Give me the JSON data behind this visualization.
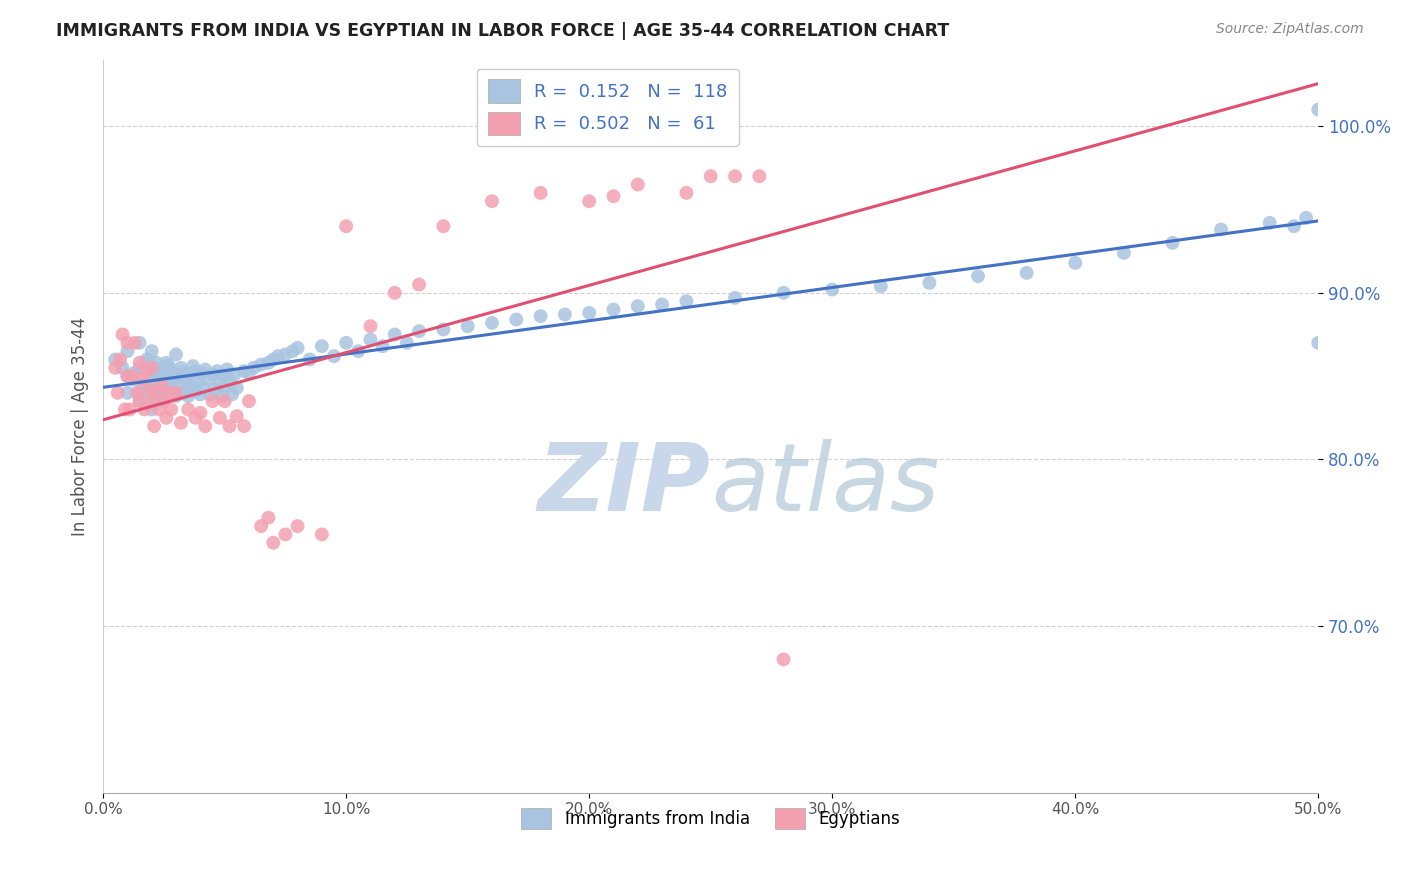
{
  "title": "IMMIGRANTS FROM INDIA VS EGYPTIAN IN LABOR FORCE | AGE 35-44 CORRELATION CHART",
  "source_text": "Source: ZipAtlas.com",
  "ylabel": "In Labor Force | Age 35-44",
  "xlim": [
    0.0,
    0.5
  ],
  "ylim": [
    0.6,
    1.04
  ],
  "xticks": [
    0.0,
    0.1,
    0.2,
    0.3,
    0.4,
    0.5
  ],
  "xticklabels": [
    "0.0%",
    "10.0%",
    "20.0%",
    "30.0%",
    "40.0%",
    "50.0%"
  ],
  "yticks": [
    0.7,
    0.8,
    0.9,
    1.0
  ],
  "yticklabels": [
    "70.0%",
    "80.0%",
    "90.0%",
    "100.0%"
  ],
  "legend_R1": "0.152",
  "legend_N1": "118",
  "legend_R2": "0.502",
  "legend_N2": "61",
  "color_india": "#a8c4e0",
  "color_egypt": "#f4a0b0",
  "color_india_line": "#4472c4",
  "color_egypt_line": "#e05070",
  "color_ytick": "#4472c4",
  "watermark_color": "#c8d8ea",
  "india_scatter_x": [
    0.005,
    0.008,
    0.01,
    0.01,
    0.012,
    0.013,
    0.015,
    0.015,
    0.015,
    0.016,
    0.017,
    0.018,
    0.018,
    0.019,
    0.02,
    0.02,
    0.02,
    0.021,
    0.021,
    0.022,
    0.022,
    0.023,
    0.023,
    0.024,
    0.025,
    0.025,
    0.026,
    0.026,
    0.027,
    0.027,
    0.028,
    0.028,
    0.029,
    0.03,
    0.03,
    0.03,
    0.031,
    0.032,
    0.033,
    0.033,
    0.034,
    0.035,
    0.035,
    0.036,
    0.037,
    0.038,
    0.038,
    0.039,
    0.04,
    0.04,
    0.041,
    0.042,
    0.043,
    0.044,
    0.045,
    0.046,
    0.047,
    0.048,
    0.049,
    0.05,
    0.05,
    0.051,
    0.052,
    0.053,
    0.054,
    0.055,
    0.058,
    0.06,
    0.062,
    0.065,
    0.068,
    0.07,
    0.072,
    0.075,
    0.078,
    0.08,
    0.085,
    0.09,
    0.095,
    0.1,
    0.105,
    0.11,
    0.115,
    0.12,
    0.125,
    0.13,
    0.14,
    0.15,
    0.16,
    0.17,
    0.18,
    0.19,
    0.2,
    0.21,
    0.22,
    0.23,
    0.24,
    0.26,
    0.28,
    0.3,
    0.32,
    0.34,
    0.36,
    0.38,
    0.4,
    0.42,
    0.44,
    0.46,
    0.48,
    0.49,
    0.495,
    0.5,
    0.5,
    0.01,
    0.015,
    0.02,
    0.025,
    0.03
  ],
  "india_scatter_y": [
    0.86,
    0.855,
    0.85,
    0.865,
    0.848,
    0.852,
    0.84,
    0.855,
    0.87,
    0.845,
    0.858,
    0.842,
    0.86,
    0.848,
    0.837,
    0.85,
    0.865,
    0.84,
    0.855,
    0.845,
    0.858,
    0.84,
    0.853,
    0.848,
    0.838,
    0.85,
    0.845,
    0.858,
    0.842,
    0.856,
    0.84,
    0.853,
    0.848,
    0.838,
    0.851,
    0.863,
    0.845,
    0.855,
    0.84,
    0.852,
    0.847,
    0.838,
    0.851,
    0.844,
    0.856,
    0.841,
    0.853,
    0.847,
    0.839,
    0.852,
    0.843,
    0.854,
    0.848,
    0.839,
    0.851,
    0.842,
    0.853,
    0.846,
    0.838,
    0.85,
    0.843,
    0.854,
    0.847,
    0.839,
    0.851,
    0.843,
    0.853,
    0.852,
    0.855,
    0.857,
    0.858,
    0.86,
    0.862,
    0.863,
    0.865,
    0.867,
    0.86,
    0.868,
    0.862,
    0.87,
    0.865,
    0.872,
    0.868,
    0.875,
    0.87,
    0.877,
    0.878,
    0.88,
    0.882,
    0.884,
    0.886,
    0.887,
    0.888,
    0.89,
    0.892,
    0.893,
    0.895,
    0.897,
    0.9,
    0.902,
    0.904,
    0.906,
    0.91,
    0.912,
    0.918,
    0.924,
    0.93,
    0.938,
    0.942,
    0.94,
    0.945,
    0.87,
    1.01,
    0.84,
    0.835,
    0.83,
    0.835,
    0.84
  ],
  "egypt_scatter_x": [
    0.005,
    0.006,
    0.007,
    0.008,
    0.009,
    0.01,
    0.01,
    0.011,
    0.012,
    0.013,
    0.014,
    0.015,
    0.015,
    0.016,
    0.017,
    0.018,
    0.019,
    0.02,
    0.02,
    0.021,
    0.022,
    0.023,
    0.024,
    0.025,
    0.026,
    0.027,
    0.028,
    0.03,
    0.032,
    0.035,
    0.038,
    0.04,
    0.042,
    0.045,
    0.048,
    0.05,
    0.052,
    0.055,
    0.058,
    0.06,
    0.065,
    0.068,
    0.07,
    0.075,
    0.08,
    0.09,
    0.1,
    0.11,
    0.12,
    0.13,
    0.14,
    0.16,
    0.18,
    0.2,
    0.21,
    0.22,
    0.24,
    0.25,
    0.26,
    0.27,
    0.28
  ],
  "egypt_scatter_y": [
    0.855,
    0.84,
    0.86,
    0.875,
    0.83,
    0.85,
    0.87,
    0.83,
    0.85,
    0.87,
    0.84,
    0.835,
    0.858,
    0.848,
    0.83,
    0.853,
    0.842,
    0.835,
    0.855,
    0.82,
    0.84,
    0.83,
    0.845,
    0.835,
    0.825,
    0.84,
    0.83,
    0.84,
    0.822,
    0.83,
    0.825,
    0.828,
    0.82,
    0.835,
    0.825,
    0.835,
    0.82,
    0.826,
    0.82,
    0.835,
    0.76,
    0.765,
    0.75,
    0.755,
    0.76,
    0.755,
    0.94,
    0.88,
    0.9,
    0.905,
    0.94,
    0.955,
    0.96,
    0.955,
    0.958,
    0.965,
    0.96,
    0.97,
    0.97,
    0.97,
    0.68
  ]
}
